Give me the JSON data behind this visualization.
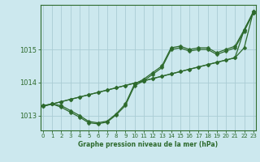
{
  "xlabel": "Graphe pression niveau de la mer (hPa)",
  "background_color": "#cce8ee",
  "grid_color": "#aaccd4",
  "line_color": "#2d6a2d",
  "hours": [
    0,
    1,
    2,
    3,
    4,
    5,
    6,
    7,
    8,
    9,
    10,
    11,
    12,
    13,
    14,
    15,
    16,
    17,
    18,
    19,
    20,
    21,
    22,
    23
  ],
  "series_wavy": [
    1013.3,
    1013.35,
    1013.3,
    1013.15,
    1013.0,
    1012.82,
    1012.78,
    1012.83,
    1013.05,
    1013.35,
    1013.95,
    1014.1,
    1014.3,
    1014.5,
    1015.05,
    1015.1,
    1015.0,
    1015.05,
    1015.05,
    1014.9,
    1015.0,
    1015.1,
    1015.6,
    1016.15
  ],
  "series_wavy2": [
    1013.3,
    1013.35,
    1013.25,
    1013.1,
    1012.95,
    1012.78,
    1012.75,
    1012.8,
    1013.02,
    1013.3,
    1013.9,
    1014.05,
    1014.25,
    1014.45,
    1015.0,
    1015.05,
    1014.95,
    1015.0,
    1015.0,
    1014.85,
    1014.95,
    1015.05,
    1015.55,
    1016.1
  ],
  "series_linear1": [
    1013.28,
    1013.35,
    1013.42,
    1013.49,
    1013.56,
    1013.63,
    1013.7,
    1013.77,
    1013.84,
    1013.91,
    1013.98,
    1014.05,
    1014.12,
    1014.19,
    1014.26,
    1014.33,
    1014.4,
    1014.47,
    1014.54,
    1014.61,
    1014.68,
    1014.75,
    1015.05,
    1016.15
  ],
  "series_linear2": [
    1013.28,
    1013.35,
    1013.42,
    1013.49,
    1013.56,
    1013.63,
    1013.7,
    1013.77,
    1013.84,
    1013.91,
    1013.98,
    1014.05,
    1014.12,
    1014.19,
    1014.26,
    1014.33,
    1014.4,
    1014.47,
    1014.54,
    1014.61,
    1014.68,
    1014.75,
    1015.6,
    1016.1
  ],
  "ylim": [
    1012.55,
    1016.35
  ],
  "yticks": [
    1013,
    1014,
    1015
  ],
  "xlim": [
    -0.3,
    23.3
  ],
  "xticks": [
    0,
    1,
    2,
    3,
    4,
    5,
    6,
    7,
    8,
    9,
    10,
    11,
    12,
    13,
    14,
    15,
    16,
    17,
    18,
    19,
    20,
    21,
    22,
    23
  ],
  "figsize": [
    3.2,
    2.0
  ],
  "dpi": 100
}
